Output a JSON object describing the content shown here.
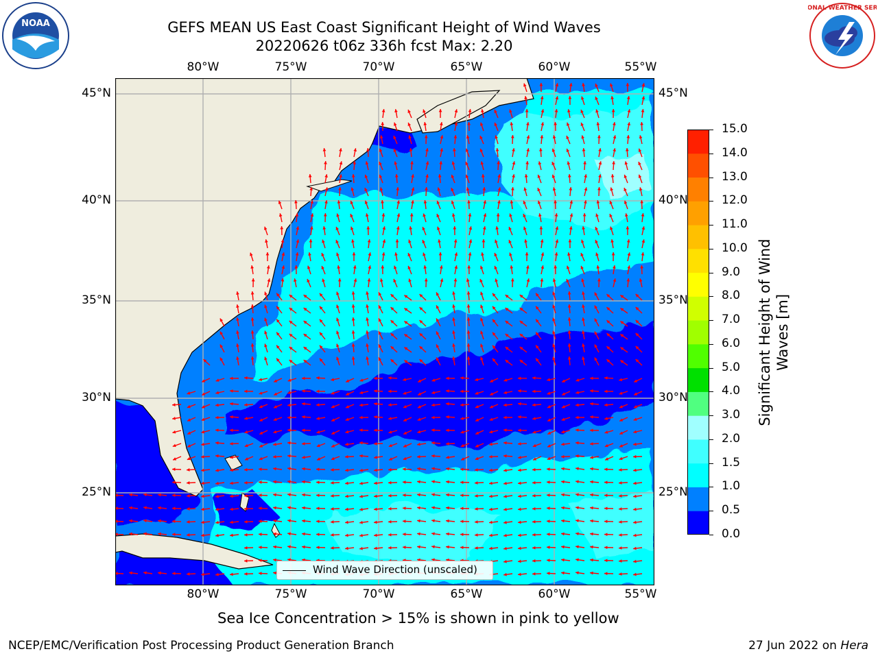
{
  "title": {
    "line1": "GEFS MEAN US East Coast Significant Height of Wind Waves",
    "line2": "20220626 t06z 336h fcst    Max: 2.20"
  },
  "logos": {
    "left": {
      "icon": "noaa-logo",
      "text": "NOAA"
    },
    "right": {
      "icon": "national-weather-service-logo",
      "text": "NATIONAL WEATHER SERVICE"
    }
  },
  "map": {
    "lon_ticks": [
      "80°W",
      "75°W",
      "70°W",
      "65°W",
      "60°W",
      "55°W"
    ],
    "lat_ticks": [
      "45°N",
      "40°N",
      "35°N",
      "30°N",
      "25°N"
    ],
    "land_color": "#efedde",
    "arrow_color": "#ff0000",
    "grid_color": "#b0b0b0"
  },
  "legend": {
    "label": "Wind Wave Direction (unscaled)"
  },
  "colorbar": {
    "label_line1": "Significant Height of Wind",
    "label_line2": "Waves [m]",
    "ticks": [
      "15.0",
      "14.0",
      "13.0",
      "12.0",
      "11.0",
      "10.0",
      "9.0",
      "8.0",
      "7.0",
      "6.0",
      "5.0",
      "4.0",
      "3.0",
      "2.0",
      "1.5",
      "1.0",
      "0.5",
      "0.0"
    ],
    "colors": [
      "#0000ff",
      "#0080ff",
      "#00ffff",
      "#40ffff",
      "#a0ffff",
      "#50ff80",
      "#00e000",
      "#50ff00",
      "#a0ff00",
      "#d0ff00",
      "#ffff00",
      "#ffe000",
      "#ffc000",
      "#ffa000",
      "#ff8000",
      "#ff5000",
      "#ff2000"
    ]
  },
  "caption": "Sea Ice Concentration > 15% is shown in pink to yellow",
  "footer": {
    "left": "NCEP/EMC/Verification Post Processing Product Generation Branch",
    "right_prefix": "27 Jun 2022 on ",
    "right_host": "Hera"
  }
}
